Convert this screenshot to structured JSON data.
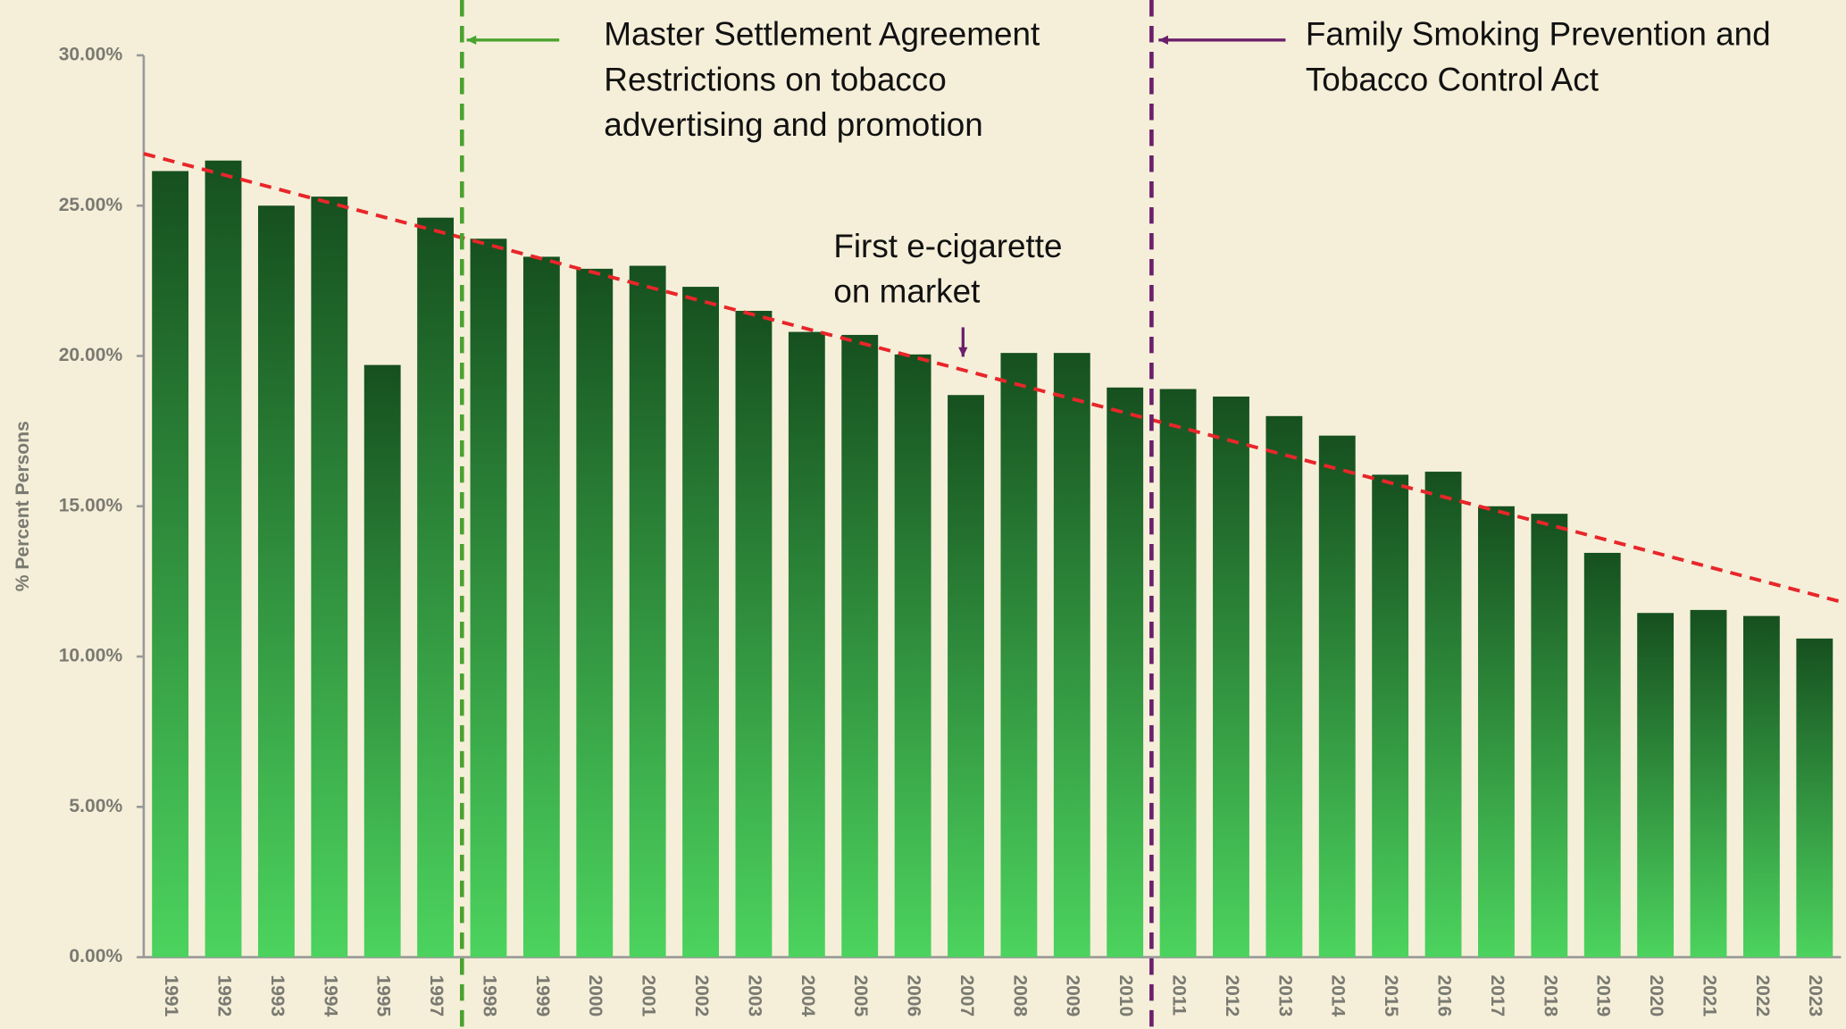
{
  "chart_data": {
    "type": "bar",
    "y_label": "% Percent Persons",
    "categories": [
      "1991",
      "1992",
      "1993",
      "1994",
      "1995",
      "1997",
      "1998",
      "1999",
      "2000",
      "2001",
      "2002",
      "2003",
      "2004",
      "2005",
      "2006",
      "2007",
      "2008",
      "2009",
      "2010",
      "2011",
      "2012",
      "2013",
      "2014",
      "2015",
      "2016",
      "2017",
      "2018",
      "2019",
      "2020",
      "2021",
      "2022",
      "2023"
    ],
    "values": [
      26.15,
      26.5,
      25.0,
      25.3,
      19.7,
      24.6,
      23.9,
      23.3,
      22.9,
      23.0,
      22.3,
      21.5,
      20.8,
      20.7,
      20.05,
      18.7,
      20.1,
      20.1,
      18.95,
      18.9,
      18.65,
      18.0,
      17.35,
      16.05,
      16.15,
      15.0,
      14.75,
      13.45,
      11.45,
      11.55,
      11.35,
      10.6
    ],
    "colors": [
      "#16501f",
      "#4cd35e"
    ],
    "ylim": [
      0,
      30
    ],
    "yticks": [
      {
        "value": 0,
        "label": "0.00%"
      },
      {
        "value": 5,
        "label": "5.00%"
      },
      {
        "value": 10,
        "label": "10.00%"
      },
      {
        "value": 15,
        "label": "15.00%"
      },
      {
        "value": 20,
        "label": "20.00%"
      },
      {
        "value": 25,
        "label": "25.00%"
      },
      {
        "value": 30,
        "label": "30.00%"
      }
    ],
    "trendline": {
      "color": "#e8262a",
      "style": "dashed"
    },
    "annotations": [
      {
        "lines": [
          "Master Settlement Agreement",
          "Restrictions on tobacco",
          "advertising and promotion"
        ],
        "color": "#4aa32e"
      },
      {
        "lines": [
          "Family Smoking Prevention and",
          "Tobacco Control Act"
        ],
        "color": "#6b1f6b"
      },
      {
        "lines": [
          "First e-cigarette",
          "on market"
        ],
        "color": "#6b1f6b"
      }
    ]
  }
}
